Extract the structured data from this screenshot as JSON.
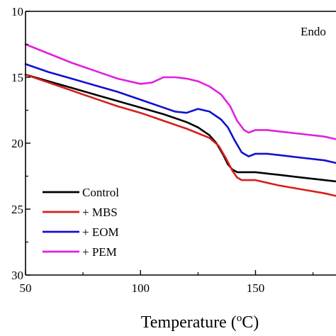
{
  "chart_data": {
    "type": "line",
    "title": "",
    "xlabel": "Temperature (°C)",
    "xlabel_main": "Temperature (",
    "xlabel_sup": "o",
    "xlabel_end": "C)",
    "ylabel": "",
    "xlim": [
      50,
      185
    ],
    "ylim": [
      10,
      30
    ],
    "y_inverted": true,
    "x_ticks": [
      50,
      100,
      150
    ],
    "y_ticks": [
      10,
      15,
      20,
      25,
      30
    ],
    "grid": false,
    "legend_position": "bottom-left",
    "annotations": [
      "Endo"
    ],
    "series": [
      {
        "name": "Control",
        "color": "#000000",
        "x": [
          50,
          60,
          70,
          80,
          90,
          100,
          110,
          120,
          125,
          130,
          133,
          136,
          138,
          140,
          142,
          145,
          150,
          155,
          160,
          170,
          180,
          185
        ],
        "y": [
          14.8,
          15.3,
          15.8,
          16.3,
          16.8,
          17.3,
          17.8,
          18.4,
          18.8,
          19.4,
          20.0,
          20.9,
          21.6,
          22.0,
          22.2,
          22.2,
          22.2,
          22.3,
          22.4,
          22.6,
          22.8,
          22.9
        ]
      },
      {
        "name": "+ MBS",
        "color": "#d81e1e",
        "x": [
          50,
          60,
          70,
          80,
          90,
          100,
          110,
          120,
          130,
          134,
          137,
          140,
          142,
          144,
          146,
          150,
          155,
          160,
          170,
          180,
          185
        ],
        "y": [
          14.8,
          15.4,
          16.0,
          16.6,
          17.2,
          17.7,
          18.3,
          18.9,
          19.6,
          20.2,
          21.1,
          22.1,
          22.6,
          22.8,
          22.8,
          22.8,
          23.0,
          23.2,
          23.5,
          23.8,
          24.0
        ]
      },
      {
        "name": "+ EOM",
        "color": "#1010d0",
        "x": [
          50,
          60,
          70,
          80,
          90,
          100,
          110,
          115,
          120,
          125,
          130,
          135,
          138,
          141,
          144,
          147,
          150,
          155,
          160,
          170,
          180,
          185
        ],
        "y": [
          14.0,
          14.6,
          15.1,
          15.6,
          16.1,
          16.7,
          17.3,
          17.6,
          17.7,
          17.4,
          17.6,
          18.2,
          18.8,
          19.8,
          20.7,
          21.0,
          20.8,
          20.8,
          20.9,
          21.1,
          21.3,
          21.5
        ]
      },
      {
        "name": "+ PEM",
        "color": "#e020e0",
        "x": [
          50,
          60,
          70,
          80,
          90,
          100,
          105,
          110,
          115,
          120,
          125,
          130,
          135,
          139,
          142,
          145,
          147,
          150,
          155,
          160,
          170,
          180,
          185
        ],
        "y": [
          12.5,
          13.2,
          13.9,
          14.5,
          15.1,
          15.5,
          15.4,
          15.0,
          15.0,
          15.1,
          15.3,
          15.7,
          16.3,
          17.2,
          18.3,
          19.0,
          19.2,
          19.0,
          19.0,
          19.1,
          19.3,
          19.5,
          19.7
        ]
      }
    ]
  }
}
